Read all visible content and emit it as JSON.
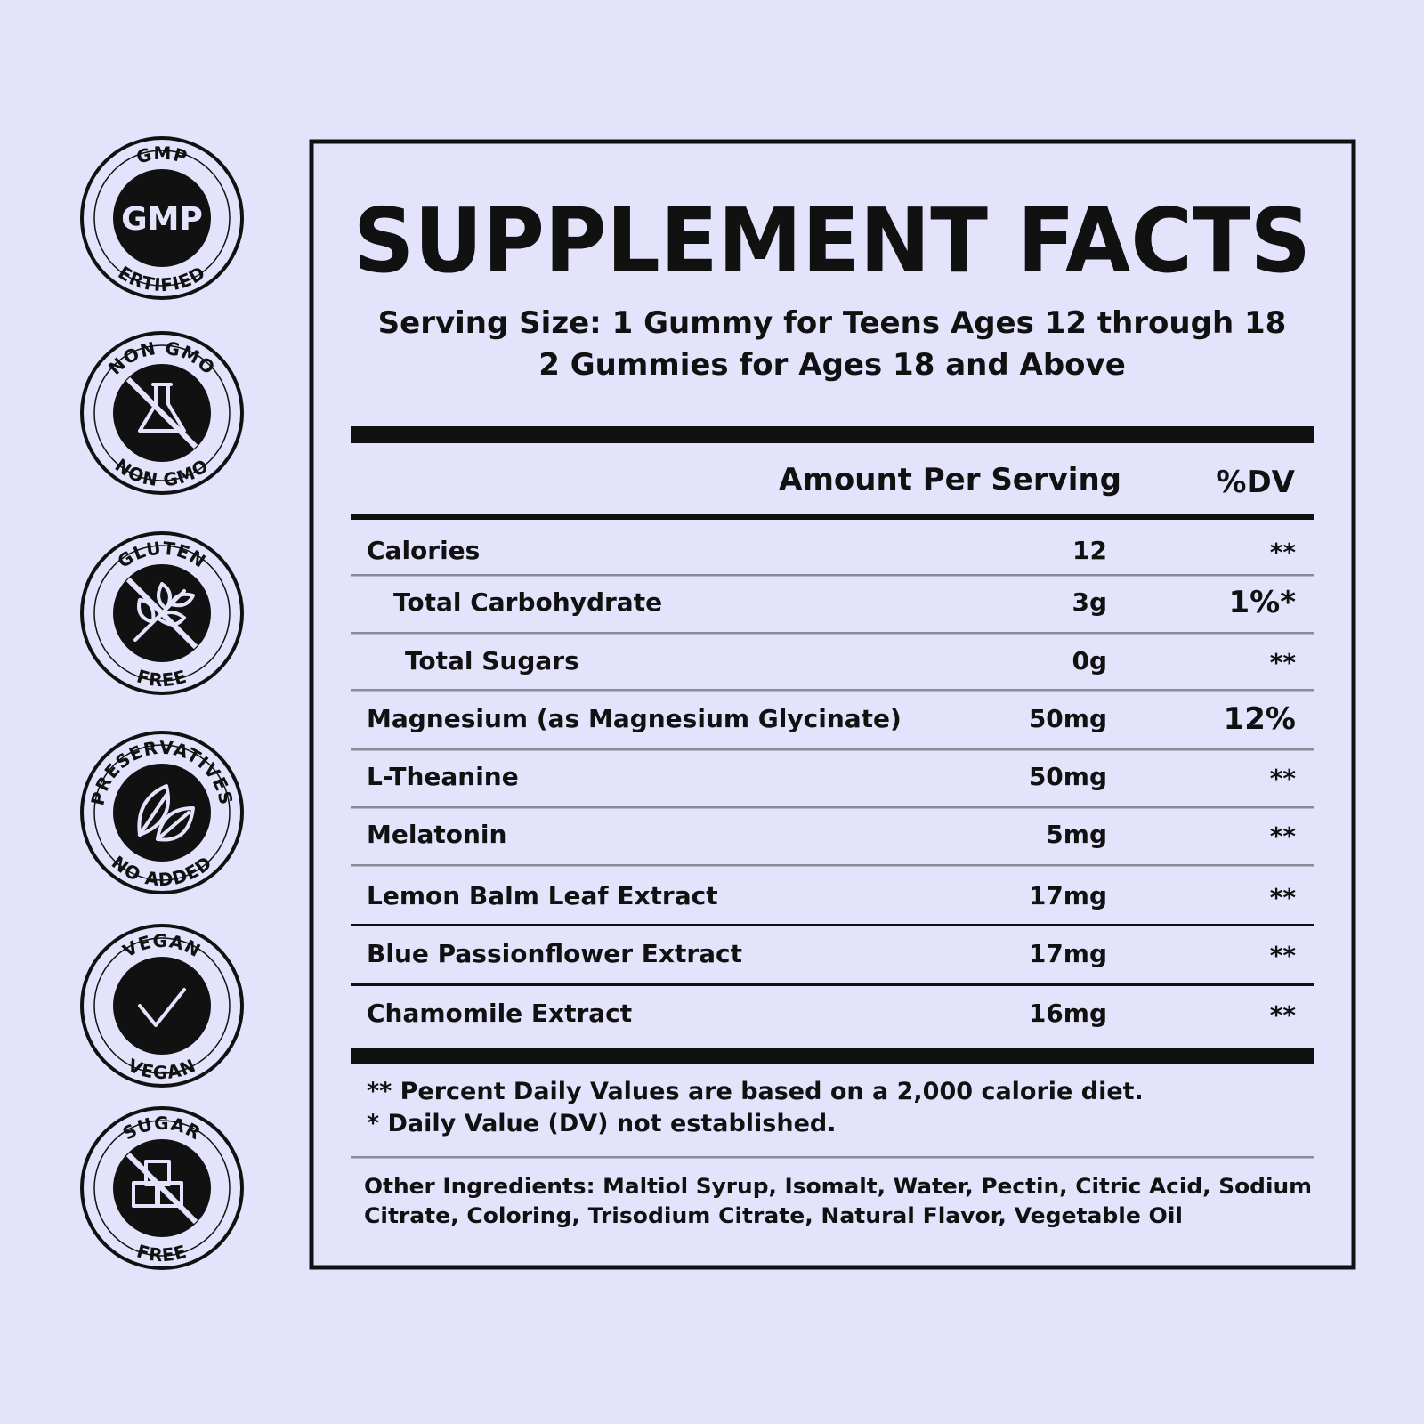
{
  "badges": [
    {
      "top": "GMP",
      "center": "GMP",
      "bottom": "ERTIFIED"
    },
    {
      "top": "NON GMO",
      "bottom": "NON GMO"
    },
    {
      "top": "GLUTEN",
      "bottom": "FREE"
    },
    {
      "top": "PRESERVATIVES",
      "bottom": "NO ADDED"
    },
    {
      "top": "VEGAN",
      "bottom": "VEGAN"
    },
    {
      "top": "SUGAR",
      "bottom": "FREE"
    }
  ],
  "facts": {
    "title": "SUPPLEMENT FACTS",
    "serving_size": [
      "Serving Size: 1 Gummy for Teens Ages 12 through 18",
      "2 Gummies for Ages 18 and Above"
    ],
    "header": {
      "amount": "Amount Per Serving",
      "dv": "%DV"
    },
    "rows": [
      {
        "name": "Calories",
        "amount": "12",
        "dv": "**"
      },
      {
        "name": "Total Carbohydrate",
        "amount": "3g",
        "dv": "1%*"
      },
      {
        "name": "Total Sugars",
        "amount": "0g",
        "dv": "**"
      },
      {
        "name": "Magnesium (as Magnesium Glycinate)",
        "amount": "50mg",
        "dv": "12%"
      },
      {
        "name": "L-Theanine",
        "amount": "50mg",
        "dv": "**"
      },
      {
        "name": "Melatonin",
        "amount": "5mg",
        "dv": "**"
      },
      {
        "name": "Lemon Balm Leaf Extract",
        "amount": "17mg",
        "dv": "**"
      },
      {
        "name": "Blue Passionflower Extract",
        "amount": "17mg",
        "dv": "**"
      },
      {
        "name": "Chamomile Extract",
        "amount": "16mg",
        "dv": "**"
      }
    ],
    "footnotes": [
      "** Percent Daily Values are based on a 2,000 calorie diet.",
      "* Daily Value (DV) not established."
    ],
    "other_ingredients": [
      "Other Ingredients: Maltiol Syrup, Isomalt, Water, Pectin, Citric Acid, Sodium",
      "Citrate, Coloring, Trisodium Citrate, Natural Flavor, Vegetable Oil"
    ]
  }
}
